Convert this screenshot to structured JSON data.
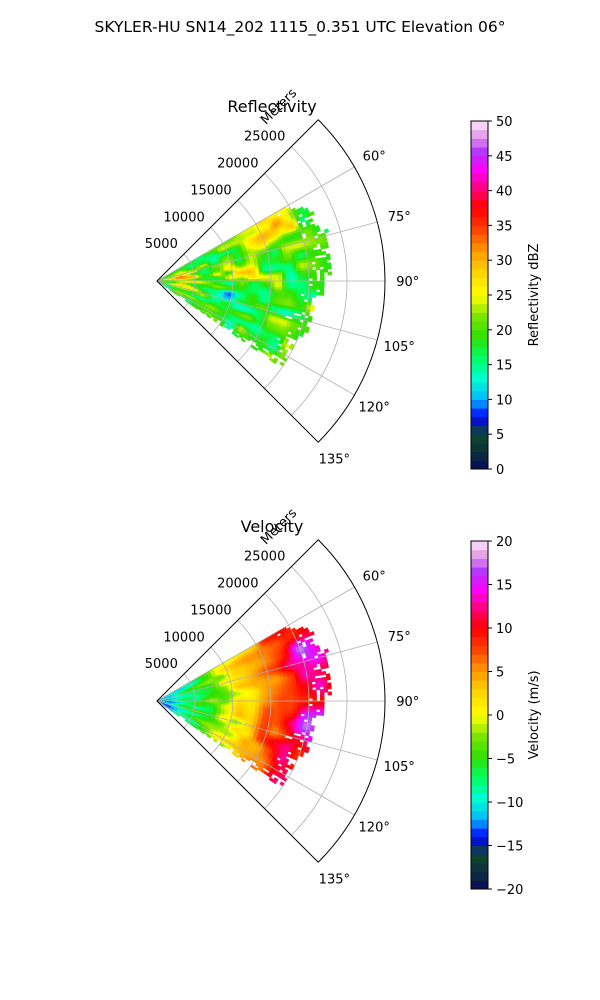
{
  "figure": {
    "suptitle": "SKYLER-HU  SN14_202  1115_0.351 UTC Elevation 06°"
  },
  "chart_data": [
    {
      "type": "heatmap",
      "projection": "polar-sector",
      "title": "Reflectivity",
      "rlabel": "Meters",
      "r_ticks": [
        5000,
        10000,
        15000,
        20000,
        25000
      ],
      "r_tick_labels": [
        "5000",
        "10000",
        "15000",
        "20000",
        "25000"
      ],
      "rlim": [
        0,
        30000
      ],
      "theta_ticks_deg": [
        60,
        75,
        90,
        105,
        120,
        135
      ],
      "theta_tick_labels": [
        "60°",
        "75°",
        "90°",
        "105°",
        "120°",
        "135°"
      ],
      "theta_range_deg": [
        45,
        135
      ],
      "data_theta_range_deg": [
        60,
        125
      ],
      "grid": true,
      "colorbar": {
        "label": "Reflectivity dBZ",
        "range": [
          0,
          50
        ],
        "ticks": [
          0,
          5,
          10,
          15,
          20,
          25,
          30,
          35,
          40,
          45,
          50
        ],
        "tick_labels": [
          "0",
          "5",
          "10",
          "15",
          "20",
          "25",
          "30",
          "35",
          "40",
          "45",
          "50"
        ],
        "colormap_stops": [
          [
            0.0,
            "#0a0a5a"
          ],
          [
            0.05,
            "#0b2f3a"
          ],
          [
            0.1,
            "#0d4a2a"
          ],
          [
            0.15,
            "#0000ff"
          ],
          [
            0.2,
            "#00b4ff"
          ],
          [
            0.26,
            "#00ffd2"
          ],
          [
            0.32,
            "#00ff64"
          ],
          [
            0.38,
            "#30e000"
          ],
          [
            0.44,
            "#7de600"
          ],
          [
            0.5,
            "#ffff00"
          ],
          [
            0.57,
            "#ffd200"
          ],
          [
            0.63,
            "#ff9600"
          ],
          [
            0.69,
            "#ff4000"
          ],
          [
            0.75,
            "#ff0000"
          ],
          [
            0.81,
            "#ff0080"
          ],
          [
            0.86,
            "#ff00ff"
          ],
          [
            0.91,
            "#b432ff"
          ],
          [
            0.96,
            "#e6a0e6"
          ],
          [
            1.0,
            "#ffe6ff"
          ]
        ]
      },
      "field_summary": "mostly 15-25 dBZ; strongest cells 30-38 dBZ near 65-70° at 13000-17000 m and near 85° at 10000-12000 m; near-radar values 25-35 dBZ"
    },
    {
      "type": "heatmap",
      "projection": "polar-sector",
      "title": "Velocity",
      "rlabel": "Meters",
      "r_ticks": [
        5000,
        10000,
        15000,
        20000,
        25000
      ],
      "r_tick_labels": [
        "5000",
        "10000",
        "15000",
        "20000",
        "25000"
      ],
      "rlim": [
        0,
        30000
      ],
      "theta_ticks_deg": [
        60,
        75,
        90,
        105,
        120,
        135
      ],
      "theta_tick_labels": [
        "60°",
        "75°",
        "90°",
        "105°",
        "120°",
        "135°"
      ],
      "theta_range_deg": [
        45,
        135
      ],
      "data_theta_range_deg": [
        60,
        125
      ],
      "grid": true,
      "colorbar": {
        "label": "Velocity (m/s)",
        "range": [
          -20,
          20
        ],
        "ticks": [
          -20,
          -15,
          -10,
          -5,
          0,
          5,
          10,
          15,
          20
        ],
        "tick_labels": [
          "−20",
          "−15",
          "−10",
          "−5",
          "0",
          "5",
          "10",
          "15",
          "20"
        ],
        "colormap_stops": [
          [
            0.0,
            "#0a0a5a"
          ],
          [
            0.05,
            "#0b2f3a"
          ],
          [
            0.1,
            "#0d4a2a"
          ],
          [
            0.15,
            "#0000ff"
          ],
          [
            0.2,
            "#00b4ff"
          ],
          [
            0.26,
            "#00ffd2"
          ],
          [
            0.32,
            "#00ff64"
          ],
          [
            0.38,
            "#30e000"
          ],
          [
            0.44,
            "#7de600"
          ],
          [
            0.5,
            "#ffff00"
          ],
          [
            0.57,
            "#ffd200"
          ],
          [
            0.63,
            "#ff9600"
          ],
          [
            0.69,
            "#ff4000"
          ],
          [
            0.75,
            "#ff0000"
          ],
          [
            0.81,
            "#ff0080"
          ],
          [
            0.86,
            "#ff00ff"
          ],
          [
            0.91,
            "#b432ff"
          ],
          [
            0.96,
            "#e6a0e6"
          ],
          [
            1.0,
            "#ffe6ff"
          ]
        ]
      },
      "field_summary": "about -12 m/s near the radar, rising through -5 and 0 m/s mid-range to +8 to +12 m/s at 15000-25000 m; small +15 m/s patches near 100° and 70°"
    }
  ]
}
